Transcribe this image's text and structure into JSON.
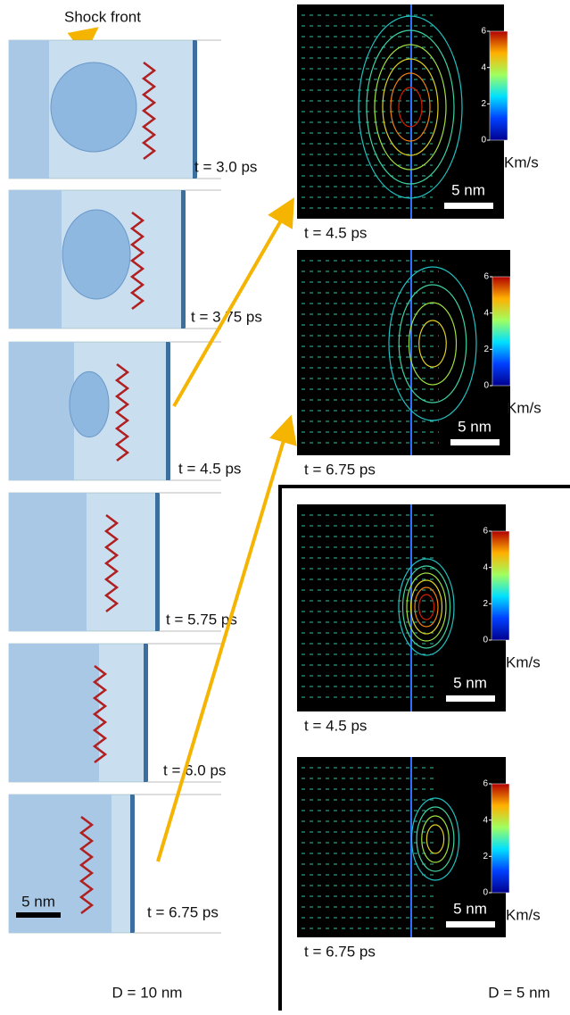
{
  "annotation": "Shock front",
  "left_panels": [
    {
      "label": "t = 3.0 ps"
    },
    {
      "label": "t = 3.75 ps"
    },
    {
      "label": "t = 4.5 ps"
    },
    {
      "label": "t = 5.75 ps"
    },
    {
      "label": "t = 6.0 ps"
    },
    {
      "label": "t = 6.75 ps"
    }
  ],
  "left_scale_bar": "5 nm",
  "left_caption": "D = 10 nm",
  "maps": [
    {
      "label": "t = 4.5 ps",
      "scale_bar": "5 nm"
    },
    {
      "label": "t = 6.75 ps",
      "scale_bar": "5 nm"
    },
    {
      "label": "t = 4.5 ps",
      "scale_bar": "5 nm"
    },
    {
      "label": "t = 6.75 ps",
      "scale_bar": "5 nm"
    }
  ],
  "colorbar_ticks": [
    0,
    2,
    4,
    6
  ],
  "colorbar_unit": "Km/s",
  "right_caption": "D = 5 nm"
}
